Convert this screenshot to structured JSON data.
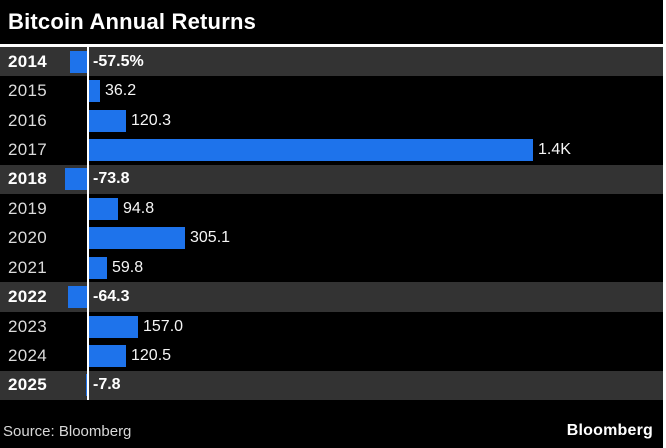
{
  "header": {
    "title": "Bitcoin Annual Returns"
  },
  "chart_data": {
    "type": "bar",
    "orientation": "horizontal",
    "title": "Bitcoin Annual Returns",
    "xlabel": "",
    "ylabel": "",
    "xlim": [
      -100,
      1450
    ],
    "grid": false,
    "legend": "none",
    "unit": "percent",
    "categories": [
      "2014",
      "2015",
      "2016",
      "2017",
      "2018",
      "2019",
      "2020",
      "2021",
      "2022",
      "2023",
      "2024",
      "2025"
    ],
    "values": [
      -57.5,
      36.2,
      120.3,
      1400,
      -73.8,
      94.8,
      305.1,
      59.8,
      -64.3,
      157.0,
      120.5,
      -7.8
    ],
    "value_labels": [
      "-57.5%",
      "36.2",
      "120.3",
      "1.4K",
      "-73.8",
      "94.8",
      "305.1",
      "59.8",
      "-64.3",
      "157.0",
      "120.5",
      "-7.8"
    ],
    "highlighted_negative_rows": [
      true,
      false,
      false,
      false,
      true,
      false,
      false,
      false,
      true,
      false,
      false,
      true
    ],
    "colors": {
      "bar": "#1E73EB",
      "highlight_row_bg": "#333333",
      "background": "#000000",
      "baseline": "#ffffff",
      "text": "#ffffff"
    }
  },
  "footer": {
    "source": "Source: Bloomberg",
    "brand": "Bloomberg"
  }
}
